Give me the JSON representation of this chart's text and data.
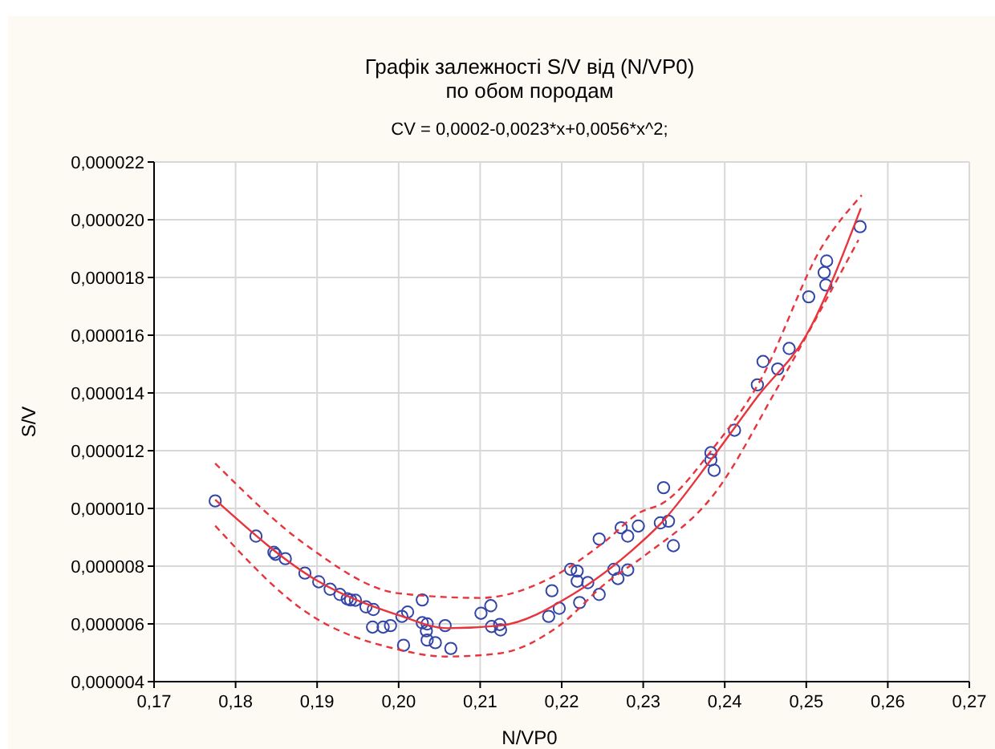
{
  "chart_data": {
    "type": "scatter",
    "title": "Графік залежності S/V від (N/VP0)\nпо обом породам",
    "subtitle": "CV = 0,0002-0,0023*x+0,0056*x^2;",
    "xlabel": "N/VP0",
    "ylabel": "S/V",
    "xlim": [
      0.17,
      0.27
    ],
    "xticks": [
      {
        "value": 0.17,
        "label": "0,17"
      },
      {
        "value": 0.18,
        "label": "0,18"
      },
      {
        "value": 0.19,
        "label": "0,19"
      },
      {
        "value": 0.2,
        "label": "0,20"
      },
      {
        "value": 0.21,
        "label": "0,21"
      },
      {
        "value": 0.22,
        "label": "0,22"
      },
      {
        "value": 0.23,
        "label": "0,23"
      },
      {
        "value": 0.24,
        "label": "0,24"
      },
      {
        "value": 0.25,
        "label": "0,25"
      },
      {
        "value": 0.26,
        "label": "0,26"
      },
      {
        "value": 0.27,
        "label": "0,27"
      }
    ],
    "ylim": [
      4e-06,
      2.2e-05
    ],
    "yticks": [
      {
        "value": 4e-06,
        "label": "0,000004"
      },
      {
        "value": 6e-06,
        "label": "0,000006"
      },
      {
        "value": 8e-06,
        "label": "0,000008"
      },
      {
        "value": 1e-05,
        "label": "0,000010"
      },
      {
        "value": 1.2e-05,
        "label": "0,000012"
      },
      {
        "value": 1.4e-05,
        "label": "0,000014"
      },
      {
        "value": 1.6e-05,
        "label": "0,000016"
      },
      {
        "value": 1.8e-05,
        "label": "0,000018"
      },
      {
        "value": 2e-05,
        "label": "0,000020"
      },
      {
        "value": 2.2e-05,
        "label": "0,000022"
      }
    ],
    "grid": true,
    "series": [
      {
        "color": "#3346a8",
        "marker": "circle",
        "x": [
          0.1775,
          0.1825,
          0.1847,
          0.1849,
          0.1861,
          0.1885,
          0.1902,
          0.1916,
          0.1928,
          0.1937,
          0.1941,
          0.1947,
          0.196,
          0.1969,
          0.1968,
          0.1981,
          0.199,
          0.2004,
          0.2011,
          0.2006,
          0.2029,
          0.2029,
          0.2035,
          0.2034,
          0.2035,
          0.2045,
          0.2057,
          0.2064,
          0.2101,
          0.2113,
          0.2114,
          0.2124,
          0.2125,
          0.2184,
          0.2188,
          0.2197,
          0.2211,
          0.2219,
          0.2219,
          0.2222,
          0.2232,
          0.2246,
          0.2246,
          0.2264,
          0.2269,
          0.2281,
          0.2273,
          0.2281,
          0.2294,
          0.2321,
          0.2331,
          0.2337,
          0.2325,
          0.2383,
          0.2383,
          0.2387,
          0.2412,
          0.244,
          0.2447,
          0.2465,
          0.2479,
          0.2503,
          0.2525,
          0.2522,
          0.2524,
          0.2566
        ],
        "values": [
          1.026e-05,
          9.04e-06,
          8.48e-06,
          8.41e-06,
          8.26e-06,
          7.76e-06,
          7.46e-06,
          7.2e-06,
          7.02e-06,
          6.87e-06,
          6.83e-06,
          6.82e-06,
          6.59e-06,
          6.5e-06,
          5.89e-06,
          5.89e-06,
          5.94e-06,
          6.26e-06,
          6.41e-06,
          5.26e-06,
          6.83e-06,
          6.04e-06,
          6e-06,
          5.76e-06,
          5.44e-06,
          5.35e-06,
          5.94e-06,
          5.15e-06,
          6.37e-06,
          6.63e-06,
          5.91e-06,
          5.98e-06,
          5.79e-06,
          6.26e-06,
          7.15e-06,
          6.54e-06,
          7.89e-06,
          7.83e-06,
          7.48e-06,
          6.74e-06,
          7.43e-06,
          7.02e-06,
          8.94e-06,
          7.89e-06,
          7.57e-06,
          7.87e-06,
          9.33e-06,
          9.04e-06,
          9.39e-06,
          9.5e-06,
          9.56e-06,
          8.71e-06,
          1.072e-05,
          1.193e-05,
          1.168e-05,
          1.132e-05,
          1.271e-05,
          1.428e-05,
          1.509e-05,
          1.483e-05,
          1.554e-05,
          1.733e-05,
          1.857e-05,
          1.817e-05,
          1.774e-05,
          1.976e-05
        ]
      },
      {
        "type": "line",
        "color": "#e8343c",
        "line_style": "solid",
        "x": [
          0.1775,
          0.19,
          0.2,
          0.206,
          0.2124,
          0.2215,
          0.2286,
          0.2321,
          0.2383,
          0.2441,
          0.25,
          0.2567
        ],
        "values": [
          1.03e-05,
          7.5e-06,
          6.3e-06,
          5.85e-06,
          5.94e-06,
          7.05e-06,
          8.54e-06,
          9.46e-06,
          1.168e-05,
          1.39e-05,
          1.6e-05,
          2.04e-05
        ]
      },
      {
        "type": "line",
        "color": "#e8343c",
        "line_style": "dashed",
        "x": [
          0.1775,
          0.1887,
          0.2,
          0.21,
          0.2187,
          0.2255,
          0.2294,
          0.2325,
          0.2389,
          0.2441,
          0.252,
          0.2568
        ],
        "values": [
          1.156e-05,
          8.72e-06,
          7.06e-06,
          6.9e-06,
          7.6e-06,
          8.9e-06,
          9.83e-06,
          1.02e-05,
          1.22e-05,
          1.43e-05,
          1.91e-05,
          2.085e-05
        ]
      },
      {
        "type": "line",
        "color": "#e8343c",
        "line_style": "dashed",
        "x": [
          0.1775,
          0.1887,
          0.2,
          0.2058,
          0.2124,
          0.2197,
          0.2255,
          0.2301,
          0.2389,
          0.2463,
          0.2564
        ],
        "values": [
          9.4e-06,
          6.4e-06,
          5.11e-06,
          4.87e-06,
          4.98e-06,
          5.94e-06,
          7.43e-06,
          8.35e-06,
          1.057e-05,
          1.41e-05,
          1.93e-05
        ]
      }
    ]
  }
}
